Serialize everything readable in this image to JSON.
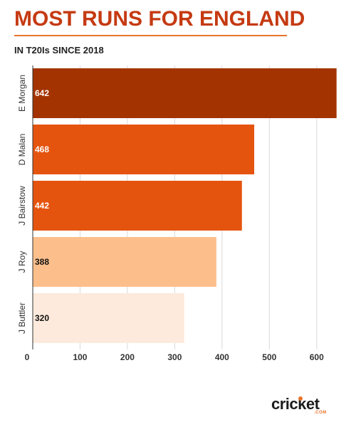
{
  "title": "MOST RUNS FOR ENGLAND",
  "subtitle": "IN T20Is SINCE 2018",
  "brand": {
    "name": "cricket",
    "suffix": ".COM"
  },
  "colors": {
    "title": "#c53a12",
    "rule": "#e8742b",
    "bars": [
      "#a33300",
      "#e5540f",
      "#e5540f",
      "#fcbf8c",
      "#fdeadc"
    ],
    "axis": "#333333"
  },
  "chart_data": {
    "type": "bar",
    "orientation": "horizontal",
    "categories": [
      "E Morgan",
      "D Malan",
      "J Bairstow",
      "J Roy",
      "J Buttler"
    ],
    "values": [
      642,
      468,
      442,
      388,
      320
    ],
    "data_labels": [
      "642",
      "468",
      "442",
      "388",
      "320"
    ],
    "xlim": [
      0,
      650
    ],
    "xticks": [
      0,
      100,
      200,
      300,
      400,
      500,
      600
    ],
    "xlabel": "",
    "ylabel": "",
    "grid": true
  }
}
